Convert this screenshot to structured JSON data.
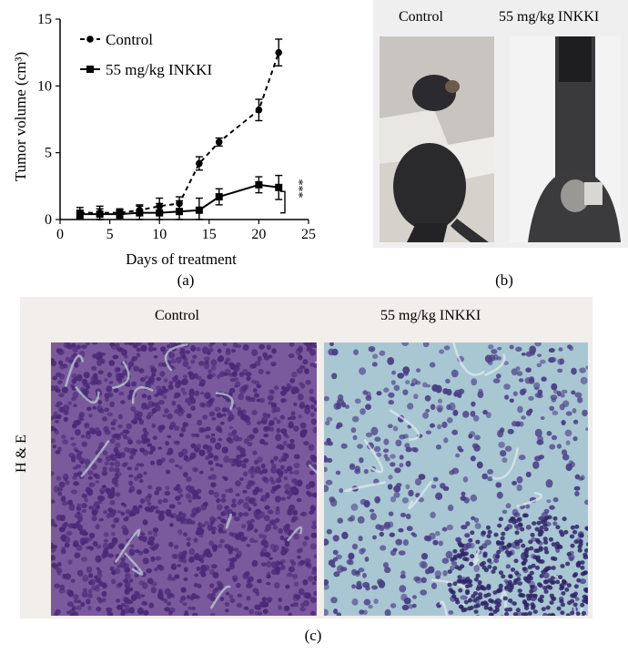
{
  "chart_data": {
    "type": "line",
    "xlabel": "Days of treatment",
    "ylabel": "Tumor volume (cm³)",
    "xlim": [
      0,
      25
    ],
    "ylim": [
      0,
      15
    ],
    "xticks": [
      "0",
      "5",
      "10",
      "15",
      "20",
      "25"
    ],
    "yticks": [
      "0",
      "5",
      "10",
      "15"
    ],
    "grid": false,
    "legend_position": "top-left",
    "series": [
      {
        "name": "Control",
        "style": "dashed",
        "marker": "circle",
        "x": [
          2,
          4,
          6,
          8,
          10,
          12,
          14,
          16,
          20,
          22
        ],
        "y": [
          0.5,
          0.5,
          0.5,
          0.7,
          1.0,
          1.2,
          4.2,
          5.8,
          8.2,
          12.5
        ],
        "error": [
          0.4,
          0.5,
          0.3,
          0.4,
          0.6,
          0.5,
          0.5,
          0.3,
          0.8,
          1.0
        ]
      },
      {
        "name": "55 mg/kg INKKI",
        "style": "solid",
        "marker": "square",
        "x": [
          2,
          4,
          6,
          8,
          10,
          12,
          14,
          16,
          20,
          22
        ],
        "y": [
          0.4,
          0.4,
          0.4,
          0.5,
          0.5,
          0.6,
          0.7,
          1.7,
          2.6,
          2.4
        ],
        "error": [
          0.3,
          0.4,
          0.3,
          0.5,
          0.7,
          0.8,
          0.9,
          0.6,
          0.6,
          0.9
        ]
      }
    ],
    "annotation": "***"
  },
  "labels": {
    "panel_a": "(a)",
    "panel_b": "(b)",
    "panel_c": "(c)",
    "photo_control": "Control",
    "photo_treated": "55 mg/kg INKKI",
    "hist_control": "Control",
    "hist_treated": "55 mg/kg INKKI",
    "stain": "H & E"
  },
  "colors": {
    "mouse_bg_left": "#d9d6d0",
    "mouse_bg_right": "#f2f2f2",
    "fur": "#2a2a2d",
    "hist_control_base": "#7a5a9c",
    "hist_control_nuclei": "#4a2a78",
    "hist_treated_base": "#a9c6d3",
    "hist_treated_nuclei": "#4a3f86",
    "panel_bg": "#f1eeec"
  }
}
